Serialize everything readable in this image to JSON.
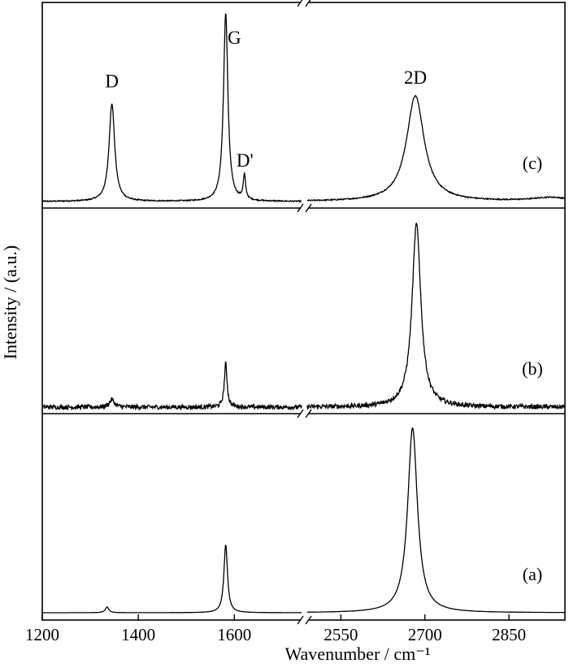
{
  "chart_data": {
    "type": "line",
    "title": "",
    "xlabel": "Wavenumber / cm⁻¹",
    "ylabel": "Intensity / (a.u.)",
    "x_axis_break": true,
    "x_segments": [
      {
        "xlim": [
          1200,
          1740
        ],
        "ticks": [
          "1200",
          "1400",
          "1600"
        ]
      },
      {
        "xlim": [
          2490,
          2950
        ],
        "ticks": [
          "2550",
          "2700",
          "2850"
        ]
      }
    ],
    "grid": false,
    "legend": "none",
    "panels": [
      {
        "name": "(c)",
        "peaks": [
          {
            "label": "D",
            "x": 1345,
            "height": 0.52,
            "width": 14,
            "label_x": 1345,
            "label_y": 0.64
          },
          {
            "label": "G",
            "x": 1582,
            "height": 1.0,
            "width": 11,
            "label_x": 1600,
            "label_y": 0.87
          },
          {
            "label": "D'",
            "x": 1621,
            "height": 0.13,
            "width": 6,
            "label_x": 1622,
            "label_y": 0.22
          },
          {
            "label": "2D",
            "x": 2683,
            "height": 0.56,
            "width": 38,
            "label_x": 2683,
            "label_y": 0.66
          }
        ],
        "noise": 0.003
      },
      {
        "name": "(b)",
        "peaks": [
          {
            "label": "",
            "x": 1345,
            "height": 0.04,
            "width": 12
          },
          {
            "label": "",
            "x": 1582,
            "height": 0.23,
            "width": 7
          },
          {
            "label": "",
            "x": 2685,
            "height": 0.97,
            "width": 19
          }
        ],
        "noise": 0.012
      },
      {
        "name": "(a)",
        "peaks": [
          {
            "label": "",
            "x": 1335,
            "height": 0.03,
            "width": 9
          },
          {
            "label": "",
            "x": 1582,
            "height": 0.36,
            "width": 9
          },
          {
            "label": "",
            "x": 2678,
            "height": 0.98,
            "width": 21
          }
        ],
        "noise": 0.0
      }
    ]
  }
}
